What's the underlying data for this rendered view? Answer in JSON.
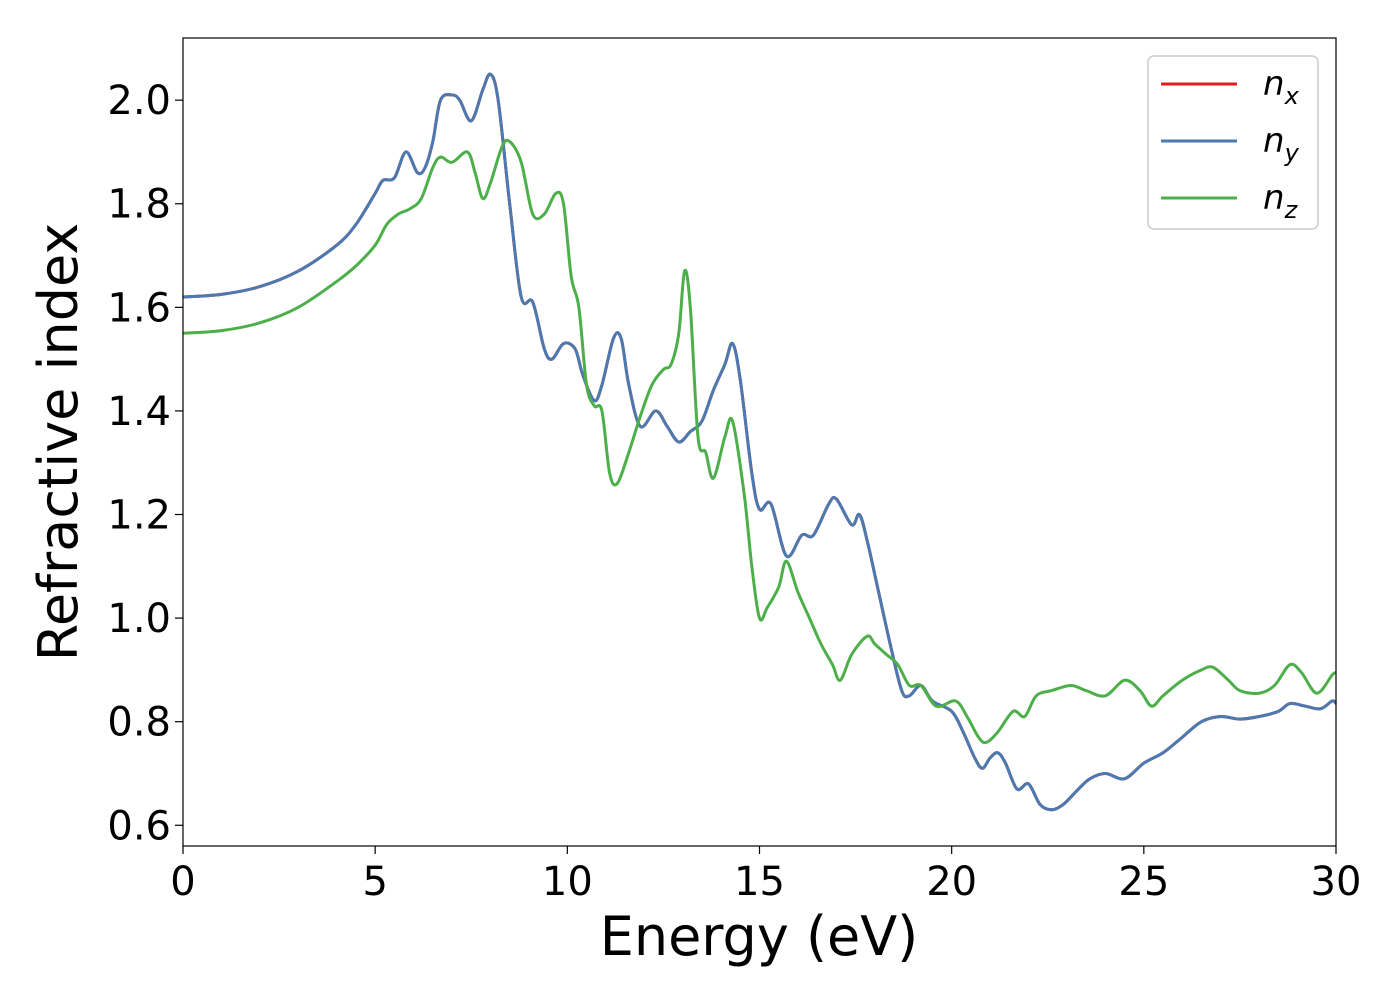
{
  "chart_data": {
    "type": "line",
    "title": "",
    "xlabel": "Energy (eV)",
    "ylabel": "Refractive index",
    "xlim": [
      0,
      30
    ],
    "ylim": [
      0.56,
      2.12
    ],
    "xticks": [
      0,
      5,
      10,
      15,
      20,
      25,
      30
    ],
    "xtick_labels": [
      "0",
      "5",
      "10",
      "15",
      "20",
      "25",
      "30"
    ],
    "yticks": [
      0.6,
      0.8,
      1.0,
      1.2,
      1.4,
      1.6,
      1.8,
      2.0
    ],
    "ytick_labels": [
      "0.6",
      "0.8",
      "1.0",
      "1.2",
      "1.4",
      "1.6",
      "1.8",
      "2.0"
    ],
    "grid": false,
    "legend_position": "top-right",
    "series": [
      {
        "name": "n",
        "subscript": "x",
        "color": "#e41a1c",
        "points": [
          [
            0,
            1.62
          ],
          [
            1,
            1.625
          ],
          [
            2,
            1.64
          ],
          [
            3,
            1.67
          ],
          [
            4,
            1.72
          ],
          [
            4.5,
            1.76
          ],
          [
            5,
            1.82
          ],
          [
            5.2,
            1.845
          ],
          [
            5.5,
            1.85
          ],
          [
            5.8,
            1.9
          ],
          [
            6.1,
            1.86
          ],
          [
            6.3,
            1.87
          ],
          [
            6.5,
            1.92
          ],
          [
            6.7,
            2.0
          ],
          [
            7,
            2.01
          ],
          [
            7.2,
            2.0
          ],
          [
            7.5,
            1.96
          ],
          [
            7.8,
            2.02
          ],
          [
            8.0,
            2.05
          ],
          [
            8.2,
            2.0
          ],
          [
            8.5,
            1.8
          ],
          [
            8.8,
            1.62
          ],
          [
            9.1,
            1.61
          ],
          [
            9.4,
            1.52
          ],
          [
            9.6,
            1.5
          ],
          [
            9.9,
            1.53
          ],
          [
            10.2,
            1.52
          ],
          [
            10.4,
            1.47
          ],
          [
            10.7,
            1.42
          ],
          [
            10.9,
            1.45
          ],
          [
            11.2,
            1.54
          ],
          [
            11.4,
            1.54
          ],
          [
            11.6,
            1.45
          ],
          [
            11.9,
            1.37
          ],
          [
            12.3,
            1.4
          ],
          [
            12.6,
            1.37
          ],
          [
            12.9,
            1.34
          ],
          [
            13.2,
            1.36
          ],
          [
            13.5,
            1.38
          ],
          [
            13.8,
            1.44
          ],
          [
            14.1,
            1.49
          ],
          [
            14.3,
            1.53
          ],
          [
            14.5,
            1.46
          ],
          [
            14.8,
            1.28
          ],
          [
            15.0,
            1.21
          ],
          [
            15.3,
            1.22
          ],
          [
            15.7,
            1.12
          ],
          [
            16.1,
            1.16
          ],
          [
            16.4,
            1.16
          ],
          [
            16.8,
            1.22
          ],
          [
            17.0,
            1.23
          ],
          [
            17.4,
            1.18
          ],
          [
            17.6,
            1.2
          ],
          [
            17.8,
            1.15
          ],
          [
            18.1,
            1.05
          ],
          [
            18.4,
            0.95
          ],
          [
            18.7,
            0.86
          ],
          [
            18.9,
            0.85
          ],
          [
            19.2,
            0.87
          ],
          [
            19.5,
            0.84
          ],
          [
            20.0,
            0.82
          ],
          [
            20.3,
            0.78
          ],
          [
            20.6,
            0.73
          ],
          [
            20.8,
            0.71
          ],
          [
            21.0,
            0.73
          ],
          [
            21.2,
            0.74
          ],
          [
            21.4,
            0.72
          ],
          [
            21.7,
            0.67
          ],
          [
            22.0,
            0.68
          ],
          [
            22.3,
            0.64
          ],
          [
            22.6,
            0.63
          ],
          [
            22.9,
            0.64
          ],
          [
            23.3,
            0.67
          ],
          [
            23.6,
            0.69
          ],
          [
            24.0,
            0.7
          ],
          [
            24.5,
            0.69
          ],
          [
            25.0,
            0.72
          ],
          [
            25.5,
            0.74
          ],
          [
            26.0,
            0.77
          ],
          [
            26.5,
            0.8
          ],
          [
            27.0,
            0.81
          ],
          [
            27.5,
            0.805
          ],
          [
            28.0,
            0.81
          ],
          [
            28.5,
            0.82
          ],
          [
            28.8,
            0.835
          ],
          [
            29.2,
            0.83
          ],
          [
            29.6,
            0.825
          ],
          [
            29.9,
            0.84
          ],
          [
            30,
            0.835
          ]
        ]
      },
      {
        "name": "n",
        "subscript": "y",
        "color": "#4a7ab0",
        "points": [
          [
            0,
            1.62
          ],
          [
            1,
            1.625
          ],
          [
            2,
            1.64
          ],
          [
            3,
            1.67
          ],
          [
            4,
            1.72
          ],
          [
            4.5,
            1.76
          ],
          [
            5,
            1.82
          ],
          [
            5.2,
            1.845
          ],
          [
            5.5,
            1.85
          ],
          [
            5.8,
            1.9
          ],
          [
            6.1,
            1.86
          ],
          [
            6.3,
            1.87
          ],
          [
            6.5,
            1.92
          ],
          [
            6.7,
            2.0
          ],
          [
            7,
            2.01
          ],
          [
            7.2,
            2.0
          ],
          [
            7.5,
            1.96
          ],
          [
            7.8,
            2.02
          ],
          [
            8.0,
            2.05
          ],
          [
            8.2,
            2.0
          ],
          [
            8.5,
            1.8
          ],
          [
            8.8,
            1.62
          ],
          [
            9.1,
            1.61
          ],
          [
            9.4,
            1.52
          ],
          [
            9.6,
            1.5
          ],
          [
            9.9,
            1.53
          ],
          [
            10.2,
            1.52
          ],
          [
            10.4,
            1.47
          ],
          [
            10.7,
            1.42
          ],
          [
            10.9,
            1.45
          ],
          [
            11.2,
            1.54
          ],
          [
            11.4,
            1.54
          ],
          [
            11.6,
            1.45
          ],
          [
            11.9,
            1.37
          ],
          [
            12.3,
            1.4
          ],
          [
            12.6,
            1.37
          ],
          [
            12.9,
            1.34
          ],
          [
            13.2,
            1.36
          ],
          [
            13.5,
            1.38
          ],
          [
            13.8,
            1.44
          ],
          [
            14.1,
            1.49
          ],
          [
            14.3,
            1.53
          ],
          [
            14.5,
            1.46
          ],
          [
            14.8,
            1.28
          ],
          [
            15.0,
            1.21
          ],
          [
            15.3,
            1.22
          ],
          [
            15.7,
            1.12
          ],
          [
            16.1,
            1.16
          ],
          [
            16.4,
            1.16
          ],
          [
            16.8,
            1.22
          ],
          [
            17.0,
            1.23
          ],
          [
            17.4,
            1.18
          ],
          [
            17.6,
            1.2
          ],
          [
            17.8,
            1.15
          ],
          [
            18.1,
            1.05
          ],
          [
            18.4,
            0.95
          ],
          [
            18.7,
            0.86
          ],
          [
            18.9,
            0.85
          ],
          [
            19.2,
            0.87
          ],
          [
            19.5,
            0.84
          ],
          [
            20.0,
            0.82
          ],
          [
            20.3,
            0.78
          ],
          [
            20.6,
            0.73
          ],
          [
            20.8,
            0.71
          ],
          [
            21.0,
            0.73
          ],
          [
            21.2,
            0.74
          ],
          [
            21.4,
            0.72
          ],
          [
            21.7,
            0.67
          ],
          [
            22.0,
            0.68
          ],
          [
            22.3,
            0.64
          ],
          [
            22.6,
            0.63
          ],
          [
            22.9,
            0.64
          ],
          [
            23.3,
            0.67
          ],
          [
            23.6,
            0.69
          ],
          [
            24.0,
            0.7
          ],
          [
            24.5,
            0.69
          ],
          [
            25.0,
            0.72
          ],
          [
            25.5,
            0.74
          ],
          [
            26.0,
            0.77
          ],
          [
            26.5,
            0.8
          ],
          [
            27.0,
            0.81
          ],
          [
            27.5,
            0.805
          ],
          [
            28.0,
            0.81
          ],
          [
            28.5,
            0.82
          ],
          [
            28.8,
            0.835
          ],
          [
            29.2,
            0.83
          ],
          [
            29.6,
            0.825
          ],
          [
            29.9,
            0.84
          ],
          [
            30,
            0.835
          ]
        ]
      },
      {
        "name": "n",
        "subscript": "z",
        "color": "#4daf4a",
        "points": [
          [
            0,
            1.55
          ],
          [
            1,
            1.555
          ],
          [
            2,
            1.57
          ],
          [
            3,
            1.6
          ],
          [
            4,
            1.65
          ],
          [
            4.5,
            1.68
          ],
          [
            5,
            1.72
          ],
          [
            5.3,
            1.76
          ],
          [
            5.6,
            1.78
          ],
          [
            5.9,
            1.79
          ],
          [
            6.2,
            1.81
          ],
          [
            6.5,
            1.87
          ],
          [
            6.7,
            1.89
          ],
          [
            7.0,
            1.88
          ],
          [
            7.4,
            1.9
          ],
          [
            7.6,
            1.86
          ],
          [
            7.8,
            1.81
          ],
          [
            8.0,
            1.84
          ],
          [
            8.3,
            1.91
          ],
          [
            8.5,
            1.92
          ],
          [
            8.8,
            1.88
          ],
          [
            9.1,
            1.78
          ],
          [
            9.4,
            1.78
          ],
          [
            9.7,
            1.82
          ],
          [
            9.9,
            1.8
          ],
          [
            10.1,
            1.66
          ],
          [
            10.3,
            1.6
          ],
          [
            10.5,
            1.45
          ],
          [
            10.7,
            1.41
          ],
          [
            10.9,
            1.4
          ],
          [
            11.1,
            1.28
          ],
          [
            11.3,
            1.26
          ],
          [
            11.6,
            1.32
          ],
          [
            11.9,
            1.39
          ],
          [
            12.2,
            1.45
          ],
          [
            12.5,
            1.48
          ],
          [
            12.7,
            1.49
          ],
          [
            12.9,
            1.55
          ],
          [
            13.05,
            1.67
          ],
          [
            13.2,
            1.6
          ],
          [
            13.4,
            1.35
          ],
          [
            13.6,
            1.32
          ],
          [
            13.8,
            1.27
          ],
          [
            14.1,
            1.35
          ],
          [
            14.3,
            1.38
          ],
          [
            14.6,
            1.24
          ],
          [
            14.8,
            1.1
          ],
          [
            15.0,
            1.0
          ],
          [
            15.2,
            1.02
          ],
          [
            15.5,
            1.06
          ],
          [
            15.7,
            1.11
          ],
          [
            16.0,
            1.05
          ],
          [
            16.3,
            1.0
          ],
          [
            16.6,
            0.95
          ],
          [
            16.9,
            0.91
          ],
          [
            17.1,
            0.88
          ],
          [
            17.4,
            0.93
          ],
          [
            17.8,
            0.965
          ],
          [
            18.0,
            0.95
          ],
          [
            18.3,
            0.93
          ],
          [
            18.6,
            0.91
          ],
          [
            18.9,
            0.87
          ],
          [
            19.2,
            0.87
          ],
          [
            19.6,
            0.83
          ],
          [
            20.1,
            0.84
          ],
          [
            20.4,
            0.81
          ],
          [
            20.7,
            0.77
          ],
          [
            20.9,
            0.76
          ],
          [
            21.2,
            0.78
          ],
          [
            21.6,
            0.82
          ],
          [
            21.9,
            0.81
          ],
          [
            22.2,
            0.85
          ],
          [
            22.6,
            0.86
          ],
          [
            23.1,
            0.87
          ],
          [
            23.5,
            0.86
          ],
          [
            24.0,
            0.85
          ],
          [
            24.5,
            0.88
          ],
          [
            24.9,
            0.86
          ],
          [
            25.2,
            0.83
          ],
          [
            25.5,
            0.85
          ],
          [
            26.0,
            0.88
          ],
          [
            26.5,
            0.9
          ],
          [
            26.8,
            0.905
          ],
          [
            27.2,
            0.88
          ],
          [
            27.5,
            0.86
          ],
          [
            28.0,
            0.855
          ],
          [
            28.4,
            0.87
          ],
          [
            28.8,
            0.91
          ],
          [
            29.1,
            0.895
          ],
          [
            29.5,
            0.855
          ],
          [
            29.9,
            0.89
          ],
          [
            30,
            0.895
          ]
        ]
      }
    ]
  }
}
